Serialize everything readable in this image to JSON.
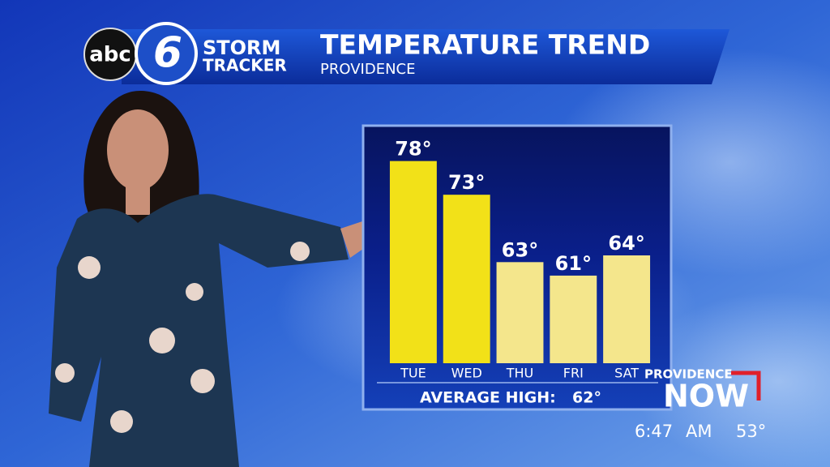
{
  "header": {
    "logo_network": "abc",
    "logo_channel": "6",
    "logo_line1": "STORM",
    "logo_line2": "TRACKER"
  },
  "chart_data": {
    "type": "bar",
    "title": "TEMPERATURE TREND",
    "subtitle": "PROVIDENCE",
    "categories": [
      "TUE",
      "WED",
      "THU",
      "FRI",
      "SAT"
    ],
    "values": [
      78,
      73,
      63,
      61,
      64
    ],
    "value_labels": [
      "78°",
      "73°",
      "63°",
      "61°",
      "64°"
    ],
    "colors": [
      "#f2e118",
      "#f2e118",
      "#f4e68c",
      "#f4e68c",
      "#f4e68c"
    ],
    "ylim": [
      48,
      80
    ],
    "annotation": {
      "text": "AVERAGE HIGH:",
      "value": 62,
      "value_label": "62°"
    }
  },
  "bug": {
    "station": "PROVIDENCE",
    "brand": "NOW",
    "time": "6:47",
    "ampm": "AM",
    "temperature": "53°"
  }
}
